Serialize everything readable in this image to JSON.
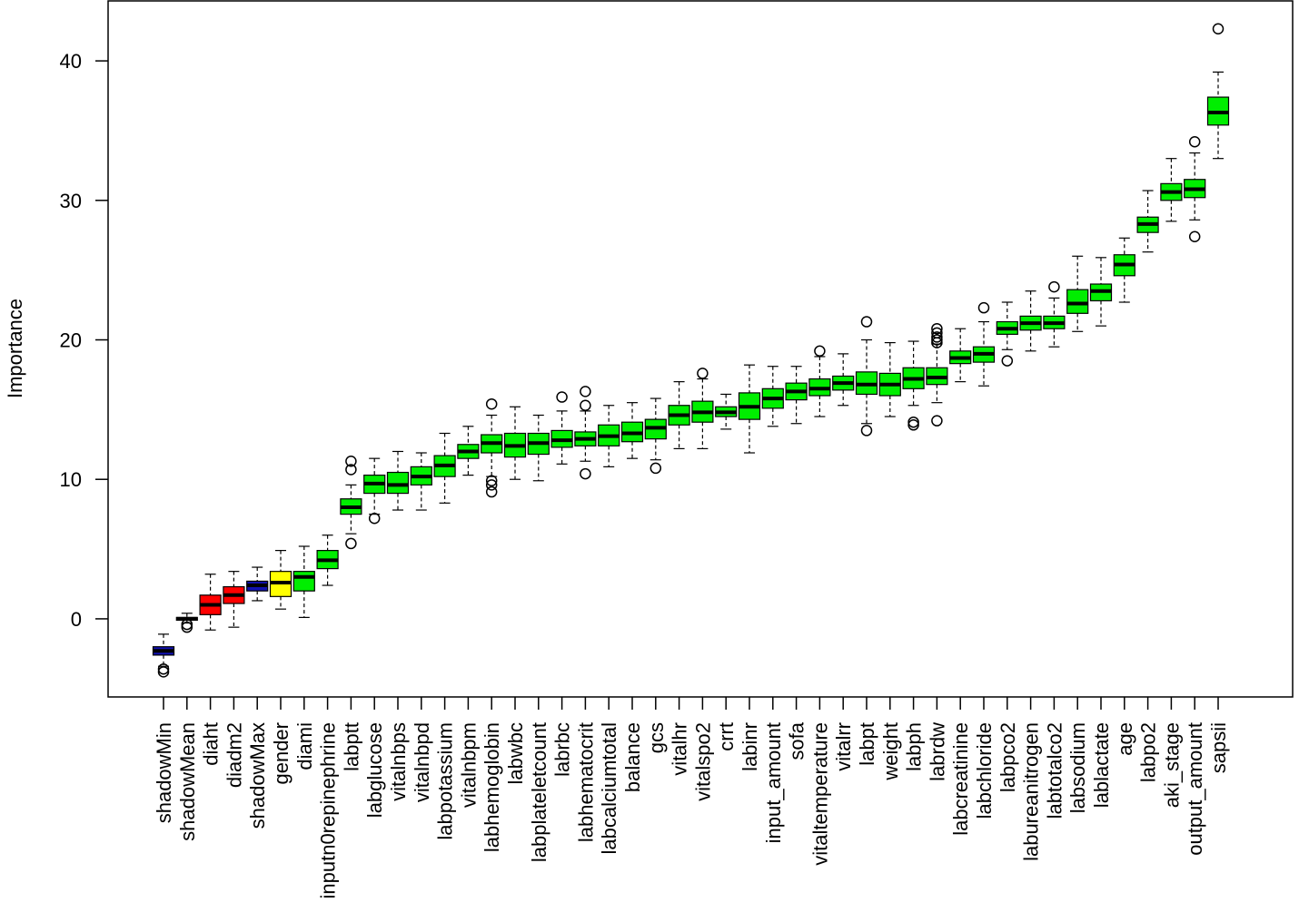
{
  "chart_data": {
    "type": "boxplot",
    "title": "",
    "xlabel": "",
    "ylabel": "Importance",
    "ylim": [
      -5.6,
      44.3
    ],
    "yticks": [
      0,
      10,
      20,
      30,
      40
    ],
    "grid": false,
    "legend": "none",
    "colors": {
      "shadow": "#1010b0",
      "rejected": "#ff0000",
      "tentative": "#ffff00",
      "confirmed": "#00ee00"
    },
    "features": [
      {
        "name": "shadowMin",
        "status": "shadow",
        "min": -3.4,
        "q1": -2.6,
        "median": -2.3,
        "q3": -2.0,
        "max": -1.1,
        "outliers": [
          -3.6,
          -3.8
        ]
      },
      {
        "name": "shadowMean",
        "status": "shadow",
        "min": -0.3,
        "q1": -0.1,
        "median": 0.0,
        "q3": 0.1,
        "max": 0.4,
        "outliers": [
          -0.4,
          -0.6
        ]
      },
      {
        "name": "diaht",
        "status": "rejected",
        "min": -0.8,
        "q1": 0.3,
        "median": 1.0,
        "q3": 1.7,
        "max": 3.2,
        "outliers": []
      },
      {
        "name": "diadm2",
        "status": "rejected",
        "min": -0.6,
        "q1": 1.1,
        "median": 1.7,
        "q3": 2.3,
        "max": 3.4,
        "outliers": []
      },
      {
        "name": "shadowMax",
        "status": "shadow",
        "min": 1.3,
        "q1": 2.0,
        "median": 2.4,
        "q3": 2.7,
        "max": 3.7,
        "outliers": []
      },
      {
        "name": "gender",
        "status": "tentative",
        "min": 0.7,
        "q1": 1.6,
        "median": 2.6,
        "q3": 3.4,
        "max": 4.9,
        "outliers": []
      },
      {
        "name": "diami",
        "status": "confirmed",
        "min": 0.1,
        "q1": 2.0,
        "median": 3.0,
        "q3": 3.4,
        "max": 5.2,
        "outliers": []
      },
      {
        "name": "inputn0repinephrine",
        "status": "confirmed",
        "min": 2.4,
        "q1": 3.6,
        "median": 4.2,
        "q3": 4.9,
        "max": 6.0,
        "outliers": []
      },
      {
        "name": "labptt",
        "status": "confirmed",
        "min": 6.1,
        "q1": 7.5,
        "median": 8.0,
        "q3": 8.6,
        "max": 9.6,
        "outliers": [
          11.3,
          10.7,
          5.4
        ]
      },
      {
        "name": "labglucose",
        "status": "confirmed",
        "min": 7.5,
        "q1": 9.0,
        "median": 9.7,
        "q3": 10.3,
        "max": 11.5,
        "outliers": [
          7.2
        ]
      },
      {
        "name": "vitalnbps",
        "status": "confirmed",
        "min": 7.8,
        "q1": 9.0,
        "median": 9.6,
        "q3": 10.5,
        "max": 12.0,
        "outliers": []
      },
      {
        "name": "vitalnbpd",
        "status": "confirmed",
        "min": 7.8,
        "q1": 9.6,
        "median": 10.2,
        "q3": 10.9,
        "max": 11.9,
        "outliers": []
      },
      {
        "name": "labpotassium",
        "status": "confirmed",
        "min": 8.3,
        "q1": 10.2,
        "median": 11.0,
        "q3": 11.7,
        "max": 13.3,
        "outliers": []
      },
      {
        "name": "vitalnbpm",
        "status": "confirmed",
        "min": 10.3,
        "q1": 11.5,
        "median": 12.0,
        "q3": 12.5,
        "max": 13.8,
        "outliers": []
      },
      {
        "name": "labhemoglobin",
        "status": "confirmed",
        "min": 10.2,
        "q1": 11.9,
        "median": 12.6,
        "q3": 13.2,
        "max": 14.6,
        "outliers": [
          15.4,
          9.9,
          9.6,
          9.1
        ]
      },
      {
        "name": "labwbc",
        "status": "confirmed",
        "min": 10.0,
        "q1": 11.6,
        "median": 12.4,
        "q3": 13.3,
        "max": 15.2,
        "outliers": []
      },
      {
        "name": "labplateletcount",
        "status": "confirmed",
        "min": 9.9,
        "q1": 11.8,
        "median": 12.6,
        "q3": 13.3,
        "max": 14.6,
        "outliers": []
      },
      {
        "name": "labrbc",
        "status": "confirmed",
        "min": 11.1,
        "q1": 12.3,
        "median": 12.8,
        "q3": 13.5,
        "max": 14.9,
        "outliers": [
          15.9
        ]
      },
      {
        "name": "labhematocrit",
        "status": "confirmed",
        "min": 11.3,
        "q1": 12.4,
        "median": 12.9,
        "q3": 13.4,
        "max": 14.9,
        "outliers": [
          16.3,
          15.3,
          10.4
        ]
      },
      {
        "name": "labcalciumtotal",
        "status": "confirmed",
        "min": 10.9,
        "q1": 12.4,
        "median": 13.1,
        "q3": 13.9,
        "max": 15.3,
        "outliers": []
      },
      {
        "name": "balance",
        "status": "confirmed",
        "min": 11.5,
        "q1": 12.7,
        "median": 13.3,
        "q3": 14.1,
        "max": 15.5,
        "outliers": []
      },
      {
        "name": "gcs",
        "status": "confirmed",
        "min": 11.4,
        "q1": 12.9,
        "median": 13.7,
        "q3": 14.3,
        "max": 15.8,
        "outliers": [
          10.8
        ]
      },
      {
        "name": "vitalhr",
        "status": "confirmed",
        "min": 12.2,
        "q1": 13.9,
        "median": 14.6,
        "q3": 15.3,
        "max": 17.0,
        "outliers": []
      },
      {
        "name": "vitalspo2",
        "status": "confirmed",
        "min": 12.2,
        "q1": 14.1,
        "median": 14.8,
        "q3": 15.6,
        "max": 17.2,
        "outliers": [
          17.6
        ]
      },
      {
        "name": "crrt",
        "status": "confirmed",
        "min": 13.6,
        "q1": 14.5,
        "median": 14.8,
        "q3": 15.2,
        "max": 16.1,
        "outliers": []
      },
      {
        "name": "labinr",
        "status": "confirmed",
        "min": 11.9,
        "q1": 14.3,
        "median": 15.2,
        "q3": 16.2,
        "max": 18.2,
        "outliers": []
      },
      {
        "name": "input_amount",
        "status": "confirmed",
        "min": 13.8,
        "q1": 15.1,
        "median": 15.8,
        "q3": 16.5,
        "max": 18.1,
        "outliers": []
      },
      {
        "name": "sofa",
        "status": "confirmed",
        "min": 14.0,
        "q1": 15.7,
        "median": 16.3,
        "q3": 16.9,
        "max": 18.1,
        "outliers": []
      },
      {
        "name": "vitaltemperature",
        "status": "confirmed",
        "min": 14.5,
        "q1": 16.0,
        "median": 16.5,
        "q3": 17.2,
        "max": 18.8,
        "outliers": [
          19.2
        ]
      },
      {
        "name": "vitalrr",
        "status": "confirmed",
        "min": 15.3,
        "q1": 16.4,
        "median": 16.9,
        "q3": 17.4,
        "max": 19.0,
        "outliers": []
      },
      {
        "name": "labpt",
        "status": "confirmed",
        "min": 14.0,
        "q1": 16.1,
        "median": 16.8,
        "q3": 17.7,
        "max": 20.0,
        "outliers": [
          21.3,
          13.5
        ]
      },
      {
        "name": "weight",
        "status": "confirmed",
        "min": 14.5,
        "q1": 16.0,
        "median": 16.8,
        "q3": 17.6,
        "max": 19.8,
        "outliers": []
      },
      {
        "name": "labph",
        "status": "confirmed",
        "min": 15.3,
        "q1": 16.5,
        "median": 17.2,
        "q3": 18.0,
        "max": 19.9,
        "outliers": [
          14.1,
          13.9
        ]
      },
      {
        "name": "labrdw",
        "status": "confirmed",
        "min": 15.5,
        "q1": 16.8,
        "median": 17.3,
        "q3": 18.0,
        "max": 19.7,
        "outliers": [
          20.8,
          20.5,
          20.2,
          20.0,
          19.8,
          14.2
        ]
      },
      {
        "name": "labcreatinine",
        "status": "confirmed",
        "min": 17.0,
        "q1": 18.3,
        "median": 18.7,
        "q3": 19.2,
        "max": 20.8,
        "outliers": []
      },
      {
        "name": "labchloride",
        "status": "confirmed",
        "min": 16.7,
        "q1": 18.4,
        "median": 19.0,
        "q3": 19.5,
        "max": 21.3,
        "outliers": [
          22.3
        ]
      },
      {
        "name": "labpco2",
        "status": "confirmed",
        "min": 19.3,
        "q1": 20.4,
        "median": 20.8,
        "q3": 21.3,
        "max": 22.7,
        "outliers": [
          18.5
        ]
      },
      {
        "name": "labureanitrogen",
        "status": "confirmed",
        "min": 19.2,
        "q1": 20.7,
        "median": 21.2,
        "q3": 21.7,
        "max": 23.5,
        "outliers": []
      },
      {
        "name": "labtotalco2",
        "status": "confirmed",
        "min": 19.5,
        "q1": 20.8,
        "median": 21.2,
        "q3": 21.7,
        "max": 23.0,
        "outliers": [
          23.8
        ]
      },
      {
        "name": "labsodium",
        "status": "confirmed",
        "min": 20.6,
        "q1": 21.9,
        "median": 22.6,
        "q3": 23.6,
        "max": 26.0,
        "outliers": []
      },
      {
        "name": "lablactate",
        "status": "confirmed",
        "min": 21.0,
        "q1": 22.8,
        "median": 23.5,
        "q3": 24.0,
        "max": 25.9,
        "outliers": []
      },
      {
        "name": "age",
        "status": "confirmed",
        "min": 22.7,
        "q1": 24.6,
        "median": 25.4,
        "q3": 26.1,
        "max": 27.3,
        "outliers": []
      },
      {
        "name": "labpo2",
        "status": "confirmed",
        "min": 26.3,
        "q1": 27.7,
        "median": 28.3,
        "q3": 28.8,
        "max": 30.7,
        "outliers": []
      },
      {
        "name": "aki_stage",
        "status": "confirmed",
        "min": 28.5,
        "q1": 30.0,
        "median": 30.6,
        "q3": 31.2,
        "max": 33.0,
        "outliers": []
      },
      {
        "name": "output_amount",
        "status": "confirmed",
        "min": 28.6,
        "q1": 30.2,
        "median": 30.8,
        "q3": 31.5,
        "max": 33.4,
        "outliers": [
          34.2,
          27.4
        ]
      },
      {
        "name": "sapsii",
        "status": "confirmed",
        "min": 33.0,
        "q1": 35.4,
        "median": 36.3,
        "q3": 37.4,
        "max": 39.2,
        "outliers": [
          42.3
        ]
      }
    ]
  }
}
